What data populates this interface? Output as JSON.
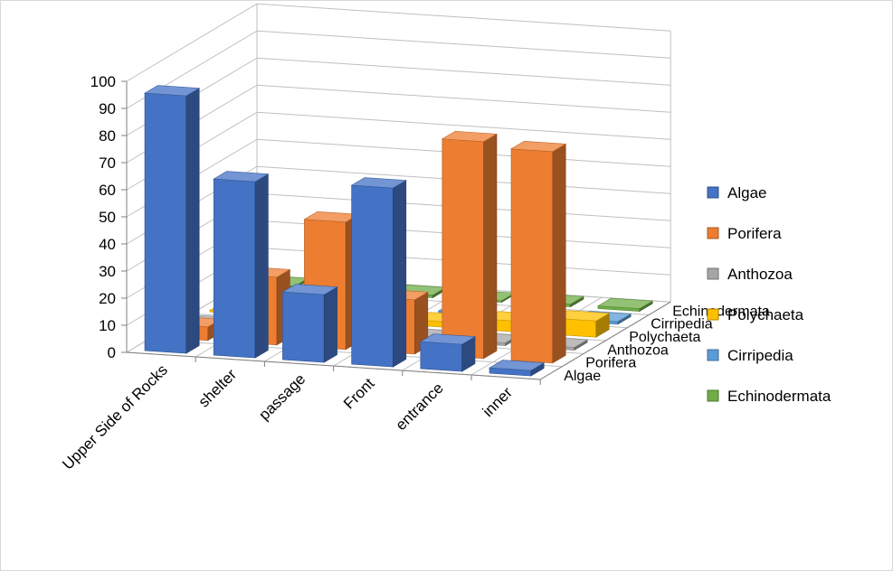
{
  "chart_data": {
    "type": "bar",
    "variant": "3d-column",
    "categories": [
      "Upper Side of Rocks",
      "shelter",
      "passage",
      "Front",
      "entrance",
      "inner"
    ],
    "series": [
      {
        "name": "Algae",
        "color": "#4472C4",
        "values": [
          95,
          65,
          25,
          66,
          10,
          2
        ]
      },
      {
        "name": "Porifera",
        "color": "#ED7D31",
        "values": [
          5,
          25,
          47,
          20,
          80,
          78
        ]
      },
      {
        "name": "Anthozoa",
        "color": "#A5A5A5",
        "values": [
          0,
          0,
          0,
          1,
          1,
          1
        ]
      },
      {
        "name": "Polychaeta",
        "color": "#FFC000",
        "values": [
          0,
          0,
          0,
          2,
          4,
          6
        ]
      },
      {
        "name": "Cirripedia",
        "color": "#5B9BD5",
        "values": [
          1,
          0,
          0,
          0,
          1,
          1
        ]
      },
      {
        "name": "Echinodermata",
        "color": "#70AD47",
        "values": [
          1,
          0,
          1,
          0,
          1,
          1
        ]
      }
    ],
    "yticks": [
      0,
      10,
      20,
      30,
      40,
      50,
      60,
      70,
      80,
      90,
      100
    ],
    "ylim": [
      0,
      100
    ],
    "grid": true,
    "legend": "right"
  }
}
